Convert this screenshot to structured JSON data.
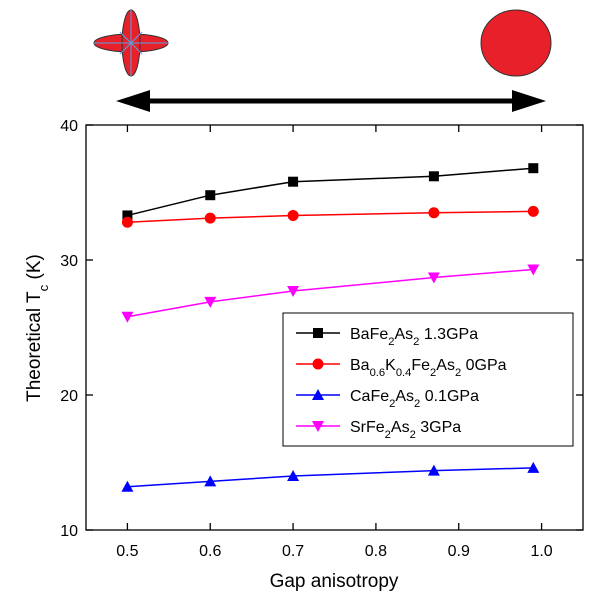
{
  "chart_data": {
    "type": "line",
    "xlabel": "Gap anisotropy",
    "ylabel": "Theoretical T_{c} (K)",
    "x": [
      0.5,
      0.6,
      0.7,
      0.87,
      0.99
    ],
    "series": [
      {
        "name": "BaFe_{2}As_{2} 1.3GPa",
        "color": "#000000",
        "marker": "square",
        "values": [
          33.3,
          34.8,
          35.8,
          36.2,
          36.8
        ]
      },
      {
        "name": "Ba_{0.6}K_{0.4}Fe_{2}As_{2} 0GPa",
        "color": "#ff0000",
        "marker": "circle",
        "values": [
          32.8,
          33.1,
          33.3,
          33.5,
          33.6
        ]
      },
      {
        "name": "CaFe_{2}As_{2} 0.1GPa",
        "color": "#0000ff",
        "marker": "triangle-up",
        "values": [
          13.2,
          13.6,
          14.0,
          14.4,
          14.6
        ]
      },
      {
        "name": "SrFe_{2}As_{2} 3GPa",
        "color": "#ff00ff",
        "marker": "triangle-down",
        "values": [
          25.8,
          26.9,
          27.7,
          28.7,
          29.3
        ]
      }
    ],
    "xlim": [
      0.45,
      1.05
    ],
    "xticks": [
      0.5,
      0.6,
      0.7,
      0.8,
      0.9,
      {
        "value": 1.0,
        "label": "1.0"
      }
    ],
    "ylim": [
      10,
      40
    ],
    "yticks": [
      10,
      20,
      30,
      40
    ],
    "grid": false,
    "legend": "lower right"
  }
}
